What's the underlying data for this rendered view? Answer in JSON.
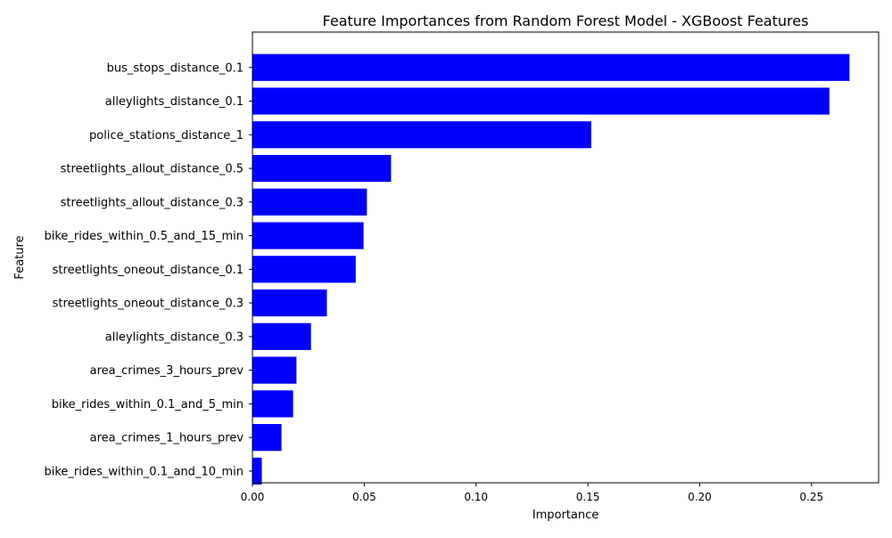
{
  "chart_data": {
    "type": "bar",
    "orientation": "horizontal",
    "title": "Feature Importances from Random Forest Model - XGBoost Features",
    "xlabel": "Importance",
    "ylabel": "Feature",
    "xlim": [
      0,
      0.28
    ],
    "xticks": [
      0.0,
      0.05,
      0.1,
      0.15,
      0.2,
      0.25
    ],
    "xtick_labels": [
      "0.00",
      "0.05",
      "0.10",
      "0.15",
      "0.20",
      "0.25"
    ],
    "grid": false,
    "bar_color": "#0000ff",
    "categories": [
      "bus_stops_distance_0.1",
      "alleylights_distance_0.1",
      "police_stations_distance_1",
      "streetlights_allout_distance_0.5",
      "streetlights_allout_distance_0.3",
      "bike_rides_within_0.5_and_15_min",
      "streetlights_oneout_distance_0.1",
      "streetlights_oneout_distance_0.3",
      "alleylights_distance_0.3",
      "area_crimes_3_hours_prev",
      "bike_rides_within_0.1_and_5_min",
      "area_crimes_1_hours_prev",
      "bike_rides_within_0.1_and_10_min"
    ],
    "values": [
      0.267,
      0.258,
      0.1515,
      0.062,
      0.0512,
      0.0497,
      0.0462,
      0.0333,
      0.0262,
      0.0197,
      0.0182,
      0.013,
      0.0042
    ]
  }
}
